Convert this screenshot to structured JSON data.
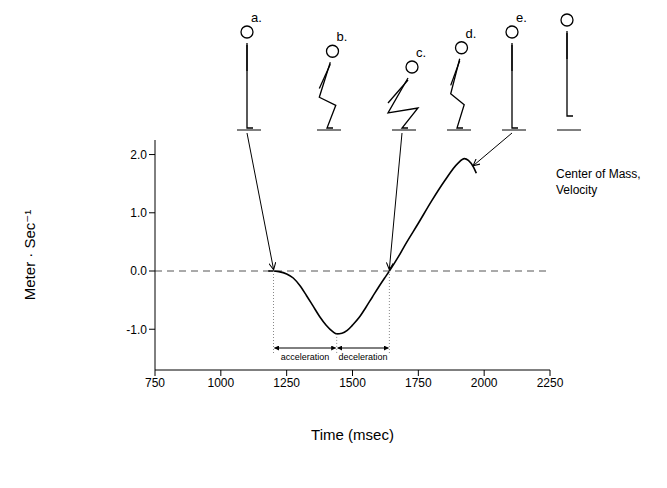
{
  "chart_data": {
    "type": "line",
    "x_label": "Time  (msec)",
    "y_label": "Meter · Sec⁻¹",
    "annotation": "Center of Mass, Velocity",
    "x": [
      1180,
      1200,
      1220,
      1250,
      1275,
      1300,
      1325,
      1350,
      1375,
      1400,
      1425,
      1440,
      1460,
      1480,
      1500,
      1525,
      1550,
      1575,
      1600,
      1625,
      1640,
      1675,
      1700,
      1750,
      1800,
      1850,
      1900,
      1925,
      1940,
      1960,
      1970
    ],
    "values": [
      0,
      0,
      -0.01,
      -0.05,
      -0.12,
      -0.25,
      -0.42,
      -0.6,
      -0.78,
      -0.93,
      -1.04,
      -1.08,
      -1.07,
      -1.02,
      -0.93,
      -0.8,
      -0.63,
      -0.45,
      -0.27,
      -0.1,
      0,
      0.25,
      0.45,
      0.82,
      1.2,
      1.55,
      1.85,
      1.93,
      1.9,
      1.78,
      1.68
    ],
    "color": "#000000",
    "xlim": [
      750,
      2250
    ],
    "xticks": [
      750,
      1000,
      1250,
      1500,
      1750,
      2000,
      2250
    ],
    "ylim": [
      -1.7,
      2.25
    ],
    "yticks": [
      {
        "value": -1,
        "label": "-1.0"
      },
      {
        "value": 0,
        "label": "0.0"
      },
      {
        "value": 1,
        "label": "1.0"
      },
      {
        "value": 2,
        "label": "2.0"
      }
    ],
    "grid": false,
    "zero_line": 0,
    "phases": [
      {
        "label": "acceleration",
        "x": [
          1200,
          1440
        ]
      },
      {
        "label": "deceleration",
        "x": [
          1440,
          1640
        ]
      }
    ],
    "poses": [
      {
        "label": "a.",
        "arrow_to": [
          1200,
          0
        ]
      },
      {
        "label": "b."
      },
      {
        "label": "c.",
        "arrow_to": [
          1640,
          0
        ]
      },
      {
        "label": "d."
      },
      {
        "label": "e.",
        "arrow_to": [
          1960,
          1.78
        ]
      }
    ]
  }
}
